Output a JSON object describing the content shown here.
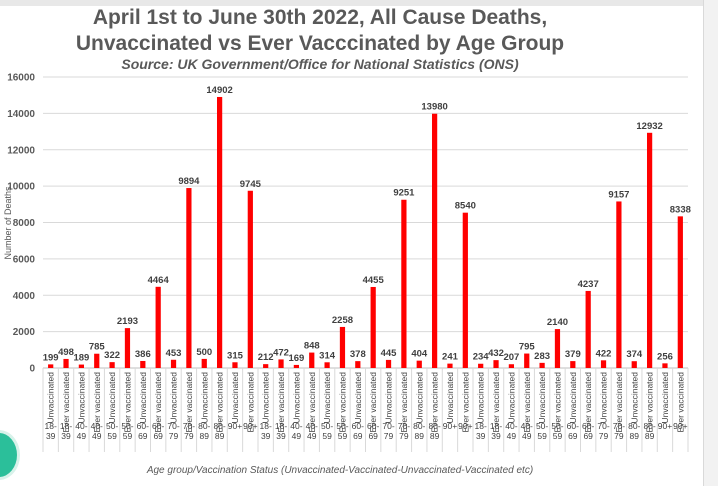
{
  "chart_data": {
    "type": "bar",
    "title_line1": "April 1st to June 30th 2022, All Cause Deaths,",
    "title_line2": "Unvaccinated vs Ever Vacccinated by Age Group",
    "subtitle": "Source: UK Government/Office for National Statistics (ONS)",
    "xlabel": "Age group/Vaccination Status (Unvaccinated-Vaccinated-Unvaccinated-Vaccinated etc)",
    "ylabel": "Number of Deaths",
    "ylim": [
      0,
      16000
    ],
    "yticks": [
      0,
      2000,
      4000,
      6000,
      8000,
      10000,
      12000,
      14000,
      16000
    ],
    "grid": true,
    "bar_color": "#ff0000",
    "categories": [
      {
        "status": "Unvaccinated",
        "age": "18-39"
      },
      {
        "status": "Ever vaccinated",
        "age": "18-39"
      },
      {
        "status": "Unvaccinated",
        "age": "40-49"
      },
      {
        "status": "Ever vaccinated",
        "age": "40-49"
      },
      {
        "status": "Unvaccinated",
        "age": "50-59"
      },
      {
        "status": "Ever vaccinated",
        "age": "50-59"
      },
      {
        "status": "Unvaccinated",
        "age": "60-69"
      },
      {
        "status": "Ever vaccinated",
        "age": "60-69"
      },
      {
        "status": "Unvaccinated",
        "age": "70-79"
      },
      {
        "status": "Ever vaccinated",
        "age": "70-79"
      },
      {
        "status": "Unvaccinated",
        "age": "80-89"
      },
      {
        "status": "Ever vaccinated",
        "age": "80-89"
      },
      {
        "status": "Unvaccinated",
        "age": "90+"
      },
      {
        "status": "Ever vaccinated",
        "age": "90+"
      },
      {
        "status": "Unvaccinated",
        "age": "18-39"
      },
      {
        "status": "Ever vaccinated",
        "age": "18-39"
      },
      {
        "status": "Unvaccinated",
        "age": "40-49"
      },
      {
        "status": "Ever vaccinated",
        "age": "40-49"
      },
      {
        "status": "Unvaccinated",
        "age": "50-59"
      },
      {
        "status": "Ever vaccinated",
        "age": "50-59"
      },
      {
        "status": "Unvaccinated",
        "age": "60-69"
      },
      {
        "status": "Ever vaccinated",
        "age": "60-69"
      },
      {
        "status": "Unvaccinated",
        "age": "70-79"
      },
      {
        "status": "Ever vaccinated",
        "age": "70-79"
      },
      {
        "status": "Unvaccinated",
        "age": "80-89"
      },
      {
        "status": "Ever vaccinated",
        "age": "80-89"
      },
      {
        "status": "Unvaccinated",
        "age": "90+"
      },
      {
        "status": "Ever vaccinated",
        "age": "90+"
      },
      {
        "status": "Unvaccinated",
        "age": "18-39"
      },
      {
        "status": "Ever vaccinated",
        "age": "18-39"
      },
      {
        "status": "Unvaccinated",
        "age": "40-49"
      },
      {
        "status": "Ever vaccinated",
        "age": "40-49"
      },
      {
        "status": "Unvaccinated",
        "age": "50-59"
      },
      {
        "status": "Ever vaccinated",
        "age": "50-59"
      },
      {
        "status": "Unvaccinated",
        "age": "60-69"
      },
      {
        "status": "Ever vaccinated",
        "age": "60-69"
      },
      {
        "status": "Unvaccinated",
        "age": "70-79"
      },
      {
        "status": "Ever vaccinated",
        "age": "70-79"
      },
      {
        "status": "Unvaccinated",
        "age": "80-89"
      },
      {
        "status": "Ever vaccinated",
        "age": "80-89"
      },
      {
        "status": "Unvaccinated",
        "age": "90+"
      },
      {
        "status": "Ever vaccinated",
        "age": "90+"
      }
    ],
    "values": [
      199,
      498,
      189,
      785,
      322,
      2193,
      386,
      4464,
      453,
      9894,
      500,
      14902,
      315,
      9745,
      212,
      472,
      169,
      848,
      314,
      2258,
      378,
      4455,
      445,
      9251,
      404,
      13980,
      241,
      8540,
      234,
      432,
      207,
      795,
      283,
      2140,
      379,
      4237,
      422,
      9157,
      374,
      12932,
      256,
      8338
    ]
  }
}
